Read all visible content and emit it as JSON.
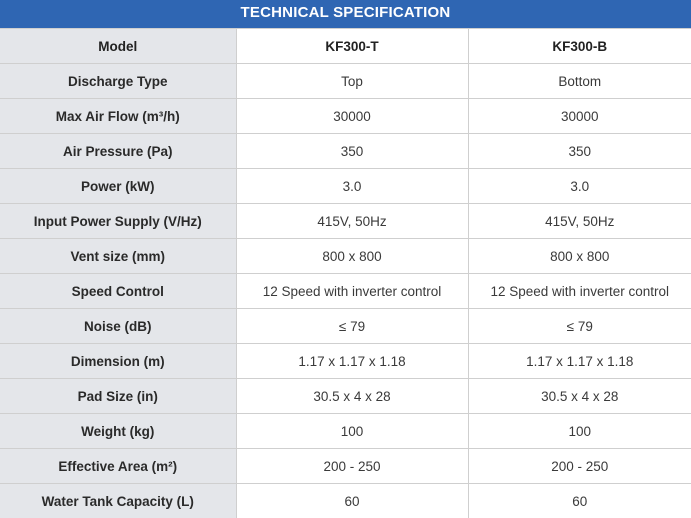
{
  "title": "TECHNICAL SPECIFICATION",
  "header": {
    "label": "Model",
    "models": [
      "KF300-T",
      "KF300-B"
    ]
  },
  "rows": [
    {
      "label": "Discharge Type",
      "values": [
        "Top",
        "Bottom"
      ]
    },
    {
      "label": "Max Air Flow (m³/h)",
      "values": [
        "30000",
        "30000"
      ]
    },
    {
      "label": "Air Pressure (Pa)",
      "values": [
        "350",
        "350"
      ]
    },
    {
      "label": "Power (kW)",
      "values": [
        "3.0",
        "3.0"
      ]
    },
    {
      "label": "Input Power Supply (V/Hz)",
      "values": [
        "415V, 50Hz",
        "415V, 50Hz"
      ]
    },
    {
      "label": "Vent size (mm)",
      "values": [
        "800 x 800",
        "800 x 800"
      ]
    },
    {
      "label": "Speed Control",
      "values": [
        "12 Speed with inverter control",
        "12 Speed with inverter control"
      ]
    },
    {
      "label": "Noise (dB)",
      "values": [
        "≤ 79",
        "≤ 79"
      ]
    },
    {
      "label": "Dimension (m)",
      "values": [
        "1.17 x 1.17 x 1.18",
        "1.17 x 1.17 x 1.18"
      ]
    },
    {
      "label": "Pad Size (in)",
      "values": [
        "30.5 x 4 x 28",
        "30.5 x 4 x 28"
      ]
    },
    {
      "label": "Weight (kg)",
      "values": [
        "100",
        "100"
      ]
    },
    {
      "label": "Effective Area (m²)",
      "values": [
        "200 - 250",
        "200 - 250"
      ]
    },
    {
      "label": "Water Tank Capacity (L)",
      "values": [
        "60",
        "60"
      ]
    }
  ],
  "colors": {
    "banner": "#2f66b3",
    "label_bg": "#e4e6ea",
    "border": "#cfcfcf"
  }
}
